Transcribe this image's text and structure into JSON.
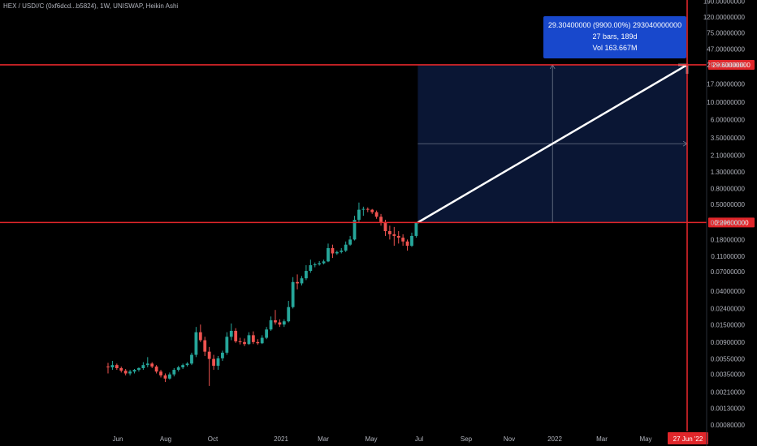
{
  "title": "HEX / USD//C (0xf6dcd...b5824), 1W, UNISWAP, Heikin Ashi",
  "colors": {
    "up": "#26a69a",
    "down": "#ef5350",
    "line": "#e0262a",
    "tooltip": "#1848cc"
  },
  "measure": {
    "line1": "29.30400000 (9900.00%) 293040000000",
    "line2": "27 bars, 189d",
    "line3": "Vol 163.667M"
  },
  "chart_data": {
    "type": "candlestick",
    "yscale": "log",
    "y_ticks": [
      "190.00000000",
      "120.00000000",
      "75.00000000",
      "47.00000000",
      "29.60000000",
      "17.00000000",
      "10.00000000",
      "6.00000000",
      "3.50000000",
      "2.10000000",
      "1.30000000",
      "0.80000000",
      "0.50000000",
      "0.29600000",
      "0.18000000",
      "0.11000000",
      "0.07000000",
      "0.04000000",
      "0.02400000",
      "0.01500000",
      "0.00900000",
      "0.00550000",
      "0.00350000",
      "0.00210000",
      "0.00130000",
      "0.00080000"
    ],
    "x_ticks": [
      "Jun",
      "Aug",
      "Oct",
      "2021",
      "Mar",
      "May",
      "Jul",
      "Sep",
      "Nov",
      "2022",
      "Mar",
      "May",
      "27 Jun '22"
    ],
    "horizontal_lines": [
      {
        "price": 29.6,
        "label": "29.60000000"
      },
      {
        "price": 0.296,
        "label": "0.29600000"
      }
    ],
    "vertical_line_label": "27 Jun '22",
    "candles": [
      {
        "o": 0.0044,
        "h": 0.0049,
        "l": 0.0036,
        "c": 0.0043
      },
      {
        "o": 0.0043,
        "h": 0.0052,
        "l": 0.004,
        "c": 0.0046
      },
      {
        "o": 0.0046,
        "h": 0.0048,
        "l": 0.004,
        "c": 0.0042
      },
      {
        "o": 0.0042,
        "h": 0.0044,
        "l": 0.0037,
        "c": 0.0039
      },
      {
        "o": 0.0039,
        "h": 0.0041,
        "l": 0.0034,
        "c": 0.0036
      },
      {
        "o": 0.0036,
        "h": 0.004,
        "l": 0.0034,
        "c": 0.0038
      },
      {
        "o": 0.0038,
        "h": 0.0041,
        "l": 0.0036,
        "c": 0.004
      },
      {
        "o": 0.004,
        "h": 0.0043,
        "l": 0.0038,
        "c": 0.0042
      },
      {
        "o": 0.0042,
        "h": 0.005,
        "l": 0.004,
        "c": 0.0046
      },
      {
        "o": 0.0046,
        "h": 0.0058,
        "l": 0.0043,
        "c": 0.0048
      },
      {
        "o": 0.0048,
        "h": 0.005,
        "l": 0.0042,
        "c": 0.0044
      },
      {
        "o": 0.0044,
        "h": 0.0046,
        "l": 0.0036,
        "c": 0.0038
      },
      {
        "o": 0.0038,
        "h": 0.004,
        "l": 0.0032,
        "c": 0.0034
      },
      {
        "o": 0.0034,
        "h": 0.0036,
        "l": 0.0028,
        "c": 0.0031
      },
      {
        "o": 0.0031,
        "h": 0.0037,
        "l": 0.003,
        "c": 0.0035
      },
      {
        "o": 0.0035,
        "h": 0.0042,
        "l": 0.0033,
        "c": 0.004
      },
      {
        "o": 0.004,
        "h": 0.0045,
        "l": 0.0038,
        "c": 0.0043
      },
      {
        "o": 0.0043,
        "h": 0.0048,
        "l": 0.0041,
        "c": 0.0046
      },
      {
        "o": 0.0046,
        "h": 0.005,
        "l": 0.0044,
        "c": 0.0048
      },
      {
        "o": 0.0048,
        "h": 0.0066,
        "l": 0.0046,
        "c": 0.0062
      },
      {
        "o": 0.0062,
        "h": 0.014,
        "l": 0.0058,
        "c": 0.012
      },
      {
        "o": 0.012,
        "h": 0.015,
        "l": 0.009,
        "c": 0.0095
      },
      {
        "o": 0.0095,
        "h": 0.0105,
        "l": 0.006,
        "c": 0.0068
      },
      {
        "o": 0.0068,
        "h": 0.0078,
        "l": 0.0025,
        "c": 0.0055
      },
      {
        "o": 0.0055,
        "h": 0.0062,
        "l": 0.004,
        "c": 0.0045
      },
      {
        "o": 0.0045,
        "h": 0.006,
        "l": 0.004,
        "c": 0.0056
      },
      {
        "o": 0.0056,
        "h": 0.007,
        "l": 0.0052,
        "c": 0.0066
      },
      {
        "o": 0.0066,
        "h": 0.012,
        "l": 0.0062,
        "c": 0.0105
      },
      {
        "o": 0.0105,
        "h": 0.0155,
        "l": 0.0095,
        "c": 0.0125
      },
      {
        "o": 0.0125,
        "h": 0.0135,
        "l": 0.0088,
        "c": 0.0092
      },
      {
        "o": 0.0092,
        "h": 0.0102,
        "l": 0.0084,
        "c": 0.009
      },
      {
        "o": 0.009,
        "h": 0.01,
        "l": 0.008,
        "c": 0.0085
      },
      {
        "o": 0.0085,
        "h": 0.012,
        "l": 0.0083,
        "c": 0.011
      },
      {
        "o": 0.011,
        "h": 0.0123,
        "l": 0.0085,
        "c": 0.009
      },
      {
        "o": 0.009,
        "h": 0.0098,
        "l": 0.0083,
        "c": 0.0087
      },
      {
        "o": 0.0087,
        "h": 0.011,
        "l": 0.0085,
        "c": 0.0102
      },
      {
        "o": 0.0102,
        "h": 0.014,
        "l": 0.0098,
        "c": 0.013
      },
      {
        "o": 0.013,
        "h": 0.019,
        "l": 0.0125,
        "c": 0.017
      },
      {
        "o": 0.017,
        "h": 0.023,
        "l": 0.015,
        "c": 0.016
      },
      {
        "o": 0.016,
        "h": 0.0175,
        "l": 0.014,
        "c": 0.015
      },
      {
        "o": 0.015,
        "h": 0.0175,
        "l": 0.014,
        "c": 0.0165
      },
      {
        "o": 0.0165,
        "h": 0.03,
        "l": 0.016,
        "c": 0.025
      },
      {
        "o": 0.025,
        "h": 0.06,
        "l": 0.024,
        "c": 0.052
      },
      {
        "o": 0.052,
        "h": 0.065,
        "l": 0.042,
        "c": 0.05
      },
      {
        "o": 0.05,
        "h": 0.062,
        "l": 0.047,
        "c": 0.058
      },
      {
        "o": 0.058,
        "h": 0.085,
        "l": 0.055,
        "c": 0.072
      },
      {
        "o": 0.072,
        "h": 0.1,
        "l": 0.068,
        "c": 0.085
      },
      {
        "o": 0.085,
        "h": 0.092,
        "l": 0.08,
        "c": 0.087
      },
      {
        "o": 0.087,
        "h": 0.096,
        "l": 0.084,
        "c": 0.09
      },
      {
        "o": 0.09,
        "h": 0.1,
        "l": 0.087,
        "c": 0.095
      },
      {
        "o": 0.095,
        "h": 0.16,
        "l": 0.093,
        "c": 0.14
      },
      {
        "o": 0.14,
        "h": 0.155,
        "l": 0.105,
        "c": 0.12
      },
      {
        "o": 0.12,
        "h": 0.13,
        "l": 0.115,
        "c": 0.125
      },
      {
        "o": 0.125,
        "h": 0.14,
        "l": 0.12,
        "c": 0.13
      },
      {
        "o": 0.13,
        "h": 0.17,
        "l": 0.125,
        "c": 0.155
      },
      {
        "o": 0.155,
        "h": 0.2,
        "l": 0.15,
        "c": 0.18
      },
      {
        "o": 0.18,
        "h": 0.36,
        "l": 0.175,
        "c": 0.32
      },
      {
        "o": 0.32,
        "h": 0.53,
        "l": 0.3,
        "c": 0.43
      },
      {
        "o": 0.43,
        "h": 0.47,
        "l": 0.36,
        "c": 0.44
      },
      {
        "o": 0.44,
        "h": 0.46,
        "l": 0.4,
        "c": 0.43
      },
      {
        "o": 0.43,
        "h": 0.44,
        "l": 0.38,
        "c": 0.4
      },
      {
        "o": 0.4,
        "h": 0.42,
        "l": 0.33,
        "c": 0.35
      },
      {
        "o": 0.35,
        "h": 0.38,
        "l": 0.27,
        "c": 0.3
      },
      {
        "o": 0.3,
        "h": 0.32,
        "l": 0.2,
        "c": 0.23
      },
      {
        "o": 0.23,
        "h": 0.27,
        "l": 0.18,
        "c": 0.21
      },
      {
        "o": 0.21,
        "h": 0.26,
        "l": 0.15,
        "c": 0.2
      },
      {
        "o": 0.2,
        "h": 0.23,
        "l": 0.16,
        "c": 0.19
      },
      {
        "o": 0.19,
        "h": 0.21,
        "l": 0.15,
        "c": 0.17
      },
      {
        "o": 0.17,
        "h": 0.18,
        "l": 0.13,
        "c": 0.15
      },
      {
        "o": 0.15,
        "h": 0.22,
        "l": 0.145,
        "c": 0.2
      },
      {
        "o": 0.2,
        "h": 0.3,
        "l": 0.19,
        "c": 0.296
      }
    ]
  }
}
